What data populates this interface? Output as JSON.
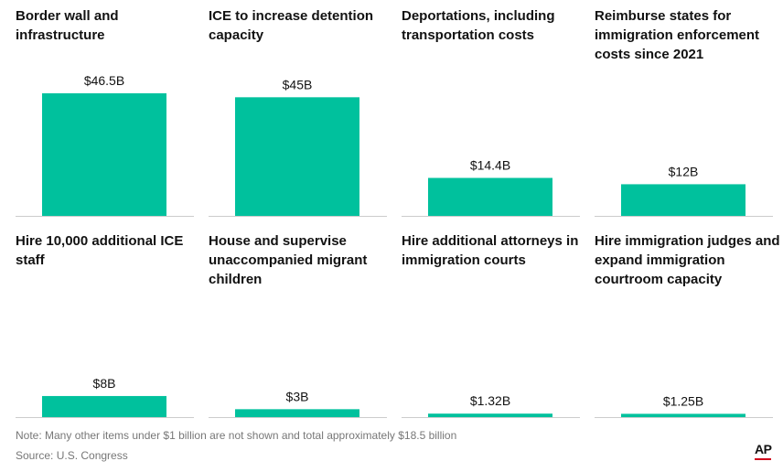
{
  "chart_data": [
    {
      "type": "bar",
      "title": "Border wall and infrastructure",
      "values": [
        46.5
      ],
      "data_labels": [
        "$46.5B"
      ],
      "ylim": [
        0,
        46.5
      ]
    },
    {
      "type": "bar",
      "title": "ICE to increase detention capacity",
      "values": [
        45
      ],
      "data_labels": [
        "$45B"
      ],
      "ylim": [
        0,
        46.5
      ]
    },
    {
      "type": "bar",
      "title": "Deportations, including transportation costs",
      "values": [
        14.4
      ],
      "data_labels": [
        "$14.4B"
      ],
      "ylim": [
        0,
        46.5
      ]
    },
    {
      "type": "bar",
      "title": "Reimburse states for immigration enforcement costs since 2021",
      "values": [
        12
      ],
      "data_labels": [
        "$12B"
      ],
      "ylim": [
        0,
        46.5
      ]
    },
    {
      "type": "bar",
      "title": "Hire 10,000 additional ICE staff",
      "values": [
        8
      ],
      "data_labels": [
        "$8B"
      ],
      "ylim": [
        0,
        46.5
      ]
    },
    {
      "type": "bar",
      "title": "House and supervise unaccompanied migrant children",
      "values": [
        3
      ],
      "data_labels": [
        "$3B"
      ],
      "ylim": [
        0,
        46.5
      ]
    },
    {
      "type": "bar",
      "title": "Hire additional attorneys in immigration courts",
      "values": [
        1.32
      ],
      "data_labels": [
        "$1.32B"
      ],
      "ylim": [
        0,
        46.5
      ]
    },
    {
      "type": "bar",
      "title": "Hire immigration judges and expand immigration courtroom capacity",
      "values": [
        1.25
      ],
      "data_labels": [
        "$1.25B"
      ],
      "ylim": [
        0,
        46.5
      ]
    }
  ],
  "colors": {
    "bar": "#00c19d",
    "baseline": "#cccccc",
    "label": "#121212",
    "accent": "#d0021b"
  },
  "footer": {
    "note": "Note: Many other items under $1 billion are not shown and total approximately $18.5 billion",
    "source": "Source: U.S. Congress",
    "logo": "AP"
  }
}
